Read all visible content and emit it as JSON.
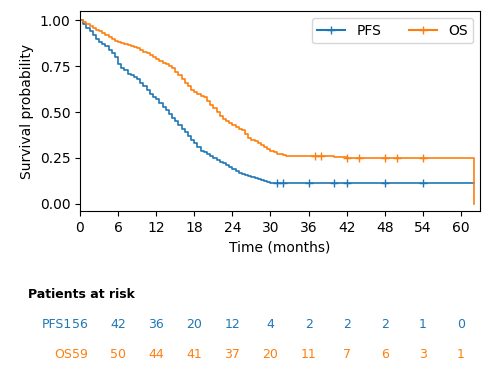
{
  "chart_data": {
    "type": "step",
    "xlabel": "Time (months)",
    "ylabel": "Survival probability",
    "xlim": [
      0,
      63
    ],
    "ylim": [
      -0.04,
      1.05
    ],
    "xticks": [
      0,
      6,
      12,
      18,
      24,
      30,
      36,
      42,
      48,
      54,
      60
    ],
    "yticks": [
      {
        "value": 0.0,
        "label": "0.00"
      },
      0.25,
      {
        "value": 0.5,
        "label": "0.50"
      },
      0.75,
      {
        "value": 1.0,
        "label": "1.00"
      }
    ],
    "legend": "upper right",
    "series": [
      {
        "name": "PFS",
        "marker": "plus",
        "x": [
          0,
          0.5,
          1,
          1.5,
          2,
          2.5,
          3,
          3.5,
          4,
          4.5,
          5,
          5.5,
          6,
          6.5,
          7,
          7.5,
          8,
          8.5,
          9,
          9.5,
          10,
          10.5,
          11,
          11.5,
          12,
          12.5,
          13,
          13.5,
          14,
          14.5,
          15,
          15.5,
          16,
          16.5,
          17,
          17.5,
          18,
          18.5,
          19,
          19.5,
          20,
          20.5,
          21,
          21.5,
          22,
          22.5,
          23,
          23.5,
          24,
          24.5,
          25,
          25.5,
          26,
          26.5,
          27,
          27.5,
          28,
          28.5,
          29,
          29.5,
          30,
          31,
          32,
          35,
          36,
          40,
          42,
          48,
          54,
          62
        ],
        "values": [
          1.0,
          0.98,
          0.96,
          0.94,
          0.92,
          0.9,
          0.88,
          0.87,
          0.86,
          0.84,
          0.82,
          0.8,
          0.76,
          0.74,
          0.73,
          0.71,
          0.7,
          0.69,
          0.68,
          0.66,
          0.64,
          0.62,
          0.6,
          0.58,
          0.57,
          0.55,
          0.53,
          0.51,
          0.49,
          0.47,
          0.45,
          0.43,
          0.41,
          0.39,
          0.37,
          0.35,
          0.33,
          0.31,
          0.29,
          0.28,
          0.27,
          0.26,
          0.25,
          0.24,
          0.23,
          0.22,
          0.21,
          0.2,
          0.19,
          0.18,
          0.17,
          0.16,
          0.155,
          0.15,
          0.145,
          0.14,
          0.135,
          0.13,
          0.125,
          0.12,
          0.115,
          0.115,
          0.115,
          0.115,
          0.115,
          0.115,
          0.115,
          0.115,
          0.115,
          0.115
        ],
        "censor": {
          "x": [
            31,
            32,
            36,
            40,
            42,
            48,
            54
          ],
          "y": [
            0.115,
            0.115,
            0.115,
            0.115,
            0.115,
            0.115,
            0.115
          ]
        }
      },
      {
        "name": "OS",
        "marker": "plus",
        "x": [
          0,
          0.5,
          1,
          1.5,
          2,
          2.5,
          3,
          3.5,
          4,
          4.5,
          5,
          5.5,
          6,
          6.5,
          7,
          7.5,
          8,
          8.5,
          9,
          9.5,
          10,
          10.5,
          11,
          11.5,
          12,
          12.5,
          13,
          13.5,
          14,
          14.5,
          15,
          15.5,
          16,
          16.5,
          17,
          17.5,
          18,
          18.5,
          19,
          19.5,
          20,
          20.5,
          21,
          21.5,
          22,
          22.5,
          23,
          23.5,
          24,
          24.5,
          25,
          25.5,
          26,
          26.5,
          27,
          27.5,
          28,
          28.5,
          29,
          29.5,
          30,
          30.5,
          31,
          31.5,
          32,
          32.5,
          33,
          34,
          35,
          36,
          37,
          38,
          40,
          42,
          44,
          48,
          50,
          54,
          60,
          62
        ],
        "values": [
          1.0,
          0.99,
          0.98,
          0.97,
          0.96,
          0.95,
          0.94,
          0.93,
          0.92,
          0.91,
          0.9,
          0.89,
          0.88,
          0.875,
          0.87,
          0.865,
          0.86,
          0.855,
          0.85,
          0.84,
          0.83,
          0.82,
          0.81,
          0.8,
          0.79,
          0.78,
          0.77,
          0.76,
          0.75,
          0.74,
          0.72,
          0.7,
          0.68,
          0.66,
          0.64,
          0.62,
          0.61,
          0.6,
          0.59,
          0.58,
          0.56,
          0.54,
          0.52,
          0.5,
          0.48,
          0.46,
          0.45,
          0.44,
          0.43,
          0.42,
          0.41,
          0.4,
          0.38,
          0.36,
          0.35,
          0.34,
          0.33,
          0.32,
          0.31,
          0.3,
          0.29,
          0.28,
          0.27,
          0.27,
          0.265,
          0.26,
          0.26,
          0.26,
          0.26,
          0.26,
          0.26,
          0.26,
          0.255,
          0.25,
          0.25,
          0.25,
          0.25,
          0.25,
          0.25,
          0.0
        ],
        "censor": {
          "x": [
            37,
            38,
            42,
            44,
            48,
            50,
            54
          ],
          "y": [
            0.26,
            0.26,
            0.25,
            0.25,
            0.25,
            0.25,
            0.25
          ]
        }
      }
    ],
    "risk_table": {
      "title": "Patients at risk",
      "x": [
        0,
        6,
        12,
        18,
        24,
        30,
        36,
        42,
        48,
        54,
        60
      ],
      "rows": [
        {
          "name": "PFS1",
          "values": [
            56,
            42,
            36,
            20,
            12,
            4,
            2,
            2,
            2,
            1,
            0
          ]
        },
        {
          "name": "OS",
          "values": [
            59,
            50,
            44,
            41,
            37,
            20,
            11,
            7,
            6,
            3,
            1
          ]
        }
      ]
    }
  }
}
